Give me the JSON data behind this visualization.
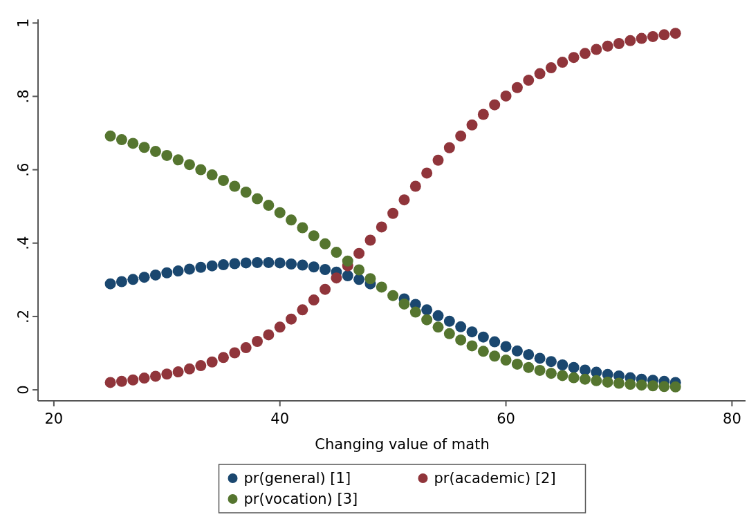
{
  "chart_data": {
    "type": "scatter",
    "xlabel": "Changing value of math",
    "x": [
      25,
      26,
      27,
      28,
      29,
      30,
      31,
      32,
      33,
      34,
      35,
      36,
      37,
      38,
      39,
      40,
      41,
      42,
      43,
      44,
      45,
      46,
      47,
      48,
      49,
      50,
      51,
      52,
      53,
      54,
      55,
      56,
      57,
      58,
      59,
      60,
      61,
      62,
      63,
      64,
      65,
      66,
      67,
      68,
      69,
      70,
      71,
      72,
      73,
      74,
      75
    ],
    "xlim": [
      18.6,
      81.2
    ],
    "xticks": [
      20,
      40,
      60,
      80
    ],
    "ylim": [
      -0.03,
      1.01
    ],
    "yticks": [
      {
        "value": 0,
        "label": "0"
      },
      {
        "value": 0.2,
        "label": ".2"
      },
      {
        "value": 0.4,
        "label": ".4"
      },
      {
        "value": 0.6,
        "label": ".6"
      },
      {
        "value": 0.8,
        "label": ".8"
      },
      {
        "value": 1,
        "label": "1"
      }
    ],
    "grid": false,
    "legend": "bottom",
    "marker": "circle",
    "series": [
      {
        "name": "pr(general) [1]",
        "color": "#1a476f",
        "values": [
          0.289,
          0.295,
          0.301,
          0.307,
          0.313,
          0.319,
          0.324,
          0.329,
          0.334,
          0.338,
          0.341,
          0.344,
          0.346,
          0.347,
          0.347,
          0.346,
          0.343,
          0.34,
          0.335,
          0.328,
          0.321,
          0.311,
          0.301,
          0.289,
          null,
          null,
          0.248,
          0.233,
          0.218,
          0.202,
          0.187,
          0.172,
          0.158,
          0.144,
          0.131,
          0.118,
          0.106,
          0.096,
          0.086,
          0.077,
          0.068,
          0.061,
          0.054,
          0.048,
          0.042,
          0.038,
          0.033,
          0.029,
          0.026,
          0.023,
          0.02
        ]
      },
      {
        "name": "pr(academic) [2]",
        "color": "#90353b",
        "values": [
          0.02,
          0.023,
          0.027,
          0.032,
          0.037,
          0.043,
          0.049,
          0.057,
          0.066,
          0.076,
          0.088,
          0.101,
          0.115,
          0.132,
          0.15,
          0.171,
          0.193,
          0.218,
          0.245,
          0.274,
          0.305,
          0.338,
          0.372,
          0.408,
          0.444,
          0.481,
          0.518,
          0.555,
          0.591,
          0.626,
          0.66,
          0.692,
          0.722,
          0.751,
          0.777,
          0.801,
          0.824,
          0.844,
          0.862,
          0.878,
          0.893,
          0.906,
          0.917,
          0.928,
          0.937,
          0.944,
          0.952,
          0.958,
          0.963,
          0.968,
          0.972
        ]
      },
      {
        "name": "pr(vocation) [3]",
        "color": "#55752f",
        "values": [
          0.692,
          0.682,
          0.672,
          0.661,
          0.65,
          0.639,
          0.627,
          0.614,
          0.6,
          0.586,
          0.571,
          0.555,
          0.539,
          0.521,
          0.503,
          0.483,
          0.463,
          0.442,
          0.42,
          0.398,
          0.375,
          0.351,
          0.327,
          0.303,
          0.28,
          0.257,
          0.234,
          0.212,
          0.191,
          0.171,
          0.153,
          0.136,
          0.12,
          0.105,
          0.092,
          0.081,
          0.07,
          0.061,
          0.053,
          0.045,
          0.039,
          0.033,
          0.029,
          0.025,
          0.021,
          0.018,
          0.015,
          0.013,
          0.011,
          0.009,
          0.008
        ]
      }
    ]
  }
}
